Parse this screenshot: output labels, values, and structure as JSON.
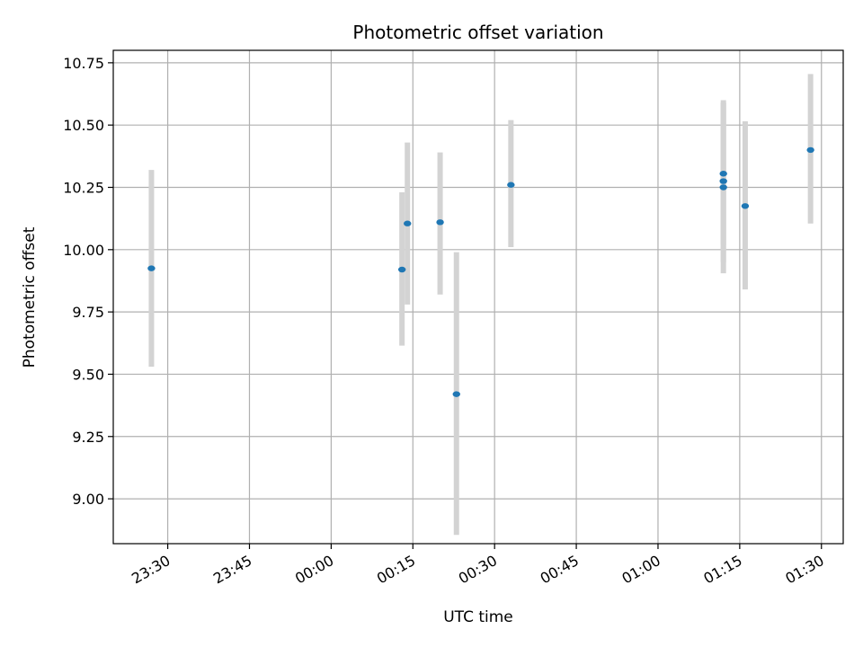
{
  "chart_data": {
    "type": "scatter",
    "title": "Photometric offset variation",
    "xlabel": "UTC time",
    "ylabel": "Photometric offset",
    "x_unit": "UTC time (HH:MM)",
    "xlim": [
      "23:20",
      "01:34"
    ],
    "ylim": [
      8.82,
      10.8
    ],
    "x_ticks": [
      "23:30",
      "23:45",
      "00:00",
      "00:15",
      "00:30",
      "00:45",
      "01:00",
      "01:15",
      "01:30"
    ],
    "y_ticks": [
      "9.00",
      "9.25",
      "9.50",
      "9.75",
      "10.00",
      "10.25",
      "10.50",
      "10.75"
    ],
    "grid": true,
    "marker_color": "#1f77b4",
    "errorbar_color": "#d3d3d3",
    "points": [
      {
        "x": "23:27",
        "y": 9.925,
        "ylow": 9.53,
        "yhigh": 10.32
      },
      {
        "x": "00:13",
        "y": 9.92,
        "ylow": 9.615,
        "yhigh": 10.23
      },
      {
        "x": "00:14",
        "y": 10.105,
        "ylow": 9.78,
        "yhigh": 10.43
      },
      {
        "x": "00:20",
        "y": 10.11,
        "ylow": 9.82,
        "yhigh": 10.39
      },
      {
        "x": "00:23",
        "y": 9.42,
        "ylow": 8.855,
        "yhigh": 9.99
      },
      {
        "x": "00:33",
        "y": 10.26,
        "ylow": 10.01,
        "yhigh": 10.52
      },
      {
        "x": "01:12",
        "y": 10.305,
        "ylow": 10.02,
        "yhigh": 10.59
      },
      {
        "x": "01:12",
        "y": 10.275,
        "ylow": 9.95,
        "yhigh": 10.6
      },
      {
        "x": "01:12",
        "y": 10.25,
        "ylow": 9.905,
        "yhigh": 10.59
      },
      {
        "x": "01:16",
        "y": 10.175,
        "ylow": 9.84,
        "yhigh": 10.515
      },
      {
        "x": "01:28",
        "y": 10.4,
        "ylow": 10.105,
        "yhigh": 10.705
      }
    ]
  }
}
